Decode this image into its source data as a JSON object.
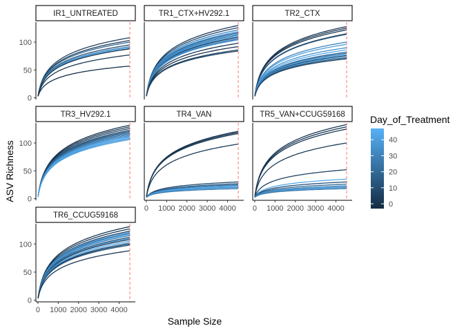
{
  "chart_data": {
    "type": "line",
    "xlabel": "Sample Size",
    "ylabel": "ASV Richness",
    "xlim": [
      -100,
      4800
    ],
    "ylim": [
      -3,
      136
    ],
    "x_ticks": [
      0,
      1000,
      2000,
      3000,
      4000
    ],
    "x_tick_labels": [
      "0",
      "1000",
      "2000",
      "3000",
      "4000"
    ],
    "y_ticks": [
      0,
      50,
      100
    ],
    "y_tick_labels": [
      "0",
      "50",
      "100"
    ],
    "rarefaction_depth": 4530,
    "grid": false,
    "legend": {
      "title": "Day_of_Treatment",
      "position": "right",
      "ticks": [
        0,
        10,
        20,
        30,
        40
      ],
      "tick_labels": [
        "0",
        "10",
        "20",
        "30",
        "40"
      ],
      "range": [
        -3,
        47
      ],
      "color_low": "#132b43",
      "color_high": "#56b1f7"
    },
    "colors": {
      "reference_line": "#f8766d",
      "panel_border": "#000000"
    },
    "panels": [
      {
        "title": "IR1_UNTREATED",
        "curves": [
          {
            "final": 108,
            "day": 5
          },
          {
            "final": 103,
            "day": 2
          },
          {
            "final": 100,
            "day": 20
          },
          {
            "final": 95,
            "day": 10
          },
          {
            "final": 92,
            "day": 32
          },
          {
            "final": 90,
            "day": 40
          },
          {
            "final": 88,
            "day": 0
          },
          {
            "final": 77,
            "day": 1
          },
          {
            "final": 57,
            "day": -2
          }
        ]
      },
      {
        "title": "TR1_CTX+HV292.1",
        "curves": [
          {
            "final": 130,
            "day": 3
          },
          {
            "final": 126,
            "day": 8
          },
          {
            "final": 122,
            "day": 30
          },
          {
            "final": 119,
            "day": 42
          },
          {
            "final": 117,
            "day": 15
          },
          {
            "final": 115,
            "day": 38
          },
          {
            "final": 113,
            "day": 25
          },
          {
            "final": 111,
            "day": 44
          },
          {
            "final": 109,
            "day": 2
          },
          {
            "final": 107,
            "day": 35
          },
          {
            "final": 105,
            "day": 20
          },
          {
            "final": 104,
            "day": 40
          },
          {
            "final": 98,
            "day": 1
          },
          {
            "final": 92,
            "day": 0
          },
          {
            "final": 86,
            "day": 4
          },
          {
            "final": 84,
            "day": 7
          }
        ]
      },
      {
        "title": "TR2_CTX",
        "curves": [
          {
            "final": 128,
            "day": 0
          },
          {
            "final": 125,
            "day": 1
          },
          {
            "final": 122,
            "day": 2
          },
          {
            "final": 115,
            "day": 3
          },
          {
            "final": 114,
            "day": 12
          },
          {
            "final": 100,
            "day": 30
          },
          {
            "final": 96,
            "day": 40
          },
          {
            "final": 90,
            "day": 35
          },
          {
            "final": 86,
            "day": 44
          },
          {
            "final": 82,
            "day": 20
          },
          {
            "final": 80,
            "day": 25
          },
          {
            "final": 78,
            "day": 42
          },
          {
            "final": 76,
            "day": 8
          },
          {
            "final": 74,
            "day": 38
          },
          {
            "final": 72,
            "day": 15
          },
          {
            "final": 70,
            "day": 5
          }
        ]
      },
      {
        "title": "TR3_HV292.1",
        "curves": [
          {
            "final": 132,
            "day": 0
          },
          {
            "final": 129,
            "day": 2
          },
          {
            "final": 126,
            "day": 5
          },
          {
            "final": 123,
            "day": 10
          },
          {
            "final": 121,
            "day": 15
          },
          {
            "final": 119,
            "day": 20
          },
          {
            "final": 117,
            "day": 25
          },
          {
            "final": 115,
            "day": 30
          },
          {
            "final": 113,
            "day": 35
          },
          {
            "final": 112,
            "day": 40
          },
          {
            "final": 110,
            "day": 44
          },
          {
            "final": 108,
            "day": 38
          },
          {
            "final": 106,
            "day": 42
          }
        ]
      },
      {
        "title": "TR4_VAN",
        "curves": [
          {
            "final": 121,
            "day": 0
          },
          {
            "final": 119,
            "day": 1
          },
          {
            "final": 117,
            "day": 2
          },
          {
            "final": 98,
            "day": 3
          },
          {
            "final": 30,
            "day": 8
          },
          {
            "final": 27,
            "day": 15
          },
          {
            "final": 25,
            "day": 22
          },
          {
            "final": 24,
            "day": 30
          },
          {
            "final": 22,
            "day": 44
          },
          {
            "final": 21,
            "day": 36
          },
          {
            "final": 20,
            "day": 40
          },
          {
            "final": 18,
            "day": 26
          }
        ]
      },
      {
        "title": "TR5_VAN+CCUG59168",
        "curves": [
          {
            "final": 133,
            "day": 0
          },
          {
            "final": 129,
            "day": 1
          },
          {
            "final": 125,
            "day": 2
          },
          {
            "final": 100,
            "day": 3
          },
          {
            "final": 52,
            "day": 5
          },
          {
            "final": 35,
            "day": 44
          },
          {
            "final": 30,
            "day": 10
          },
          {
            "final": 26,
            "day": 20
          },
          {
            "final": 23,
            "day": 30
          },
          {
            "final": 21,
            "day": 40
          },
          {
            "final": 20,
            "day": 36
          },
          {
            "final": 18,
            "day": 26
          }
        ]
      },
      {
        "title": "TR6_CCUG59168",
        "curves": [
          {
            "final": 131,
            "day": 0
          },
          {
            "final": 127,
            "day": 3
          },
          {
            "final": 123,
            "day": 8
          },
          {
            "final": 121,
            "day": 40
          },
          {
            "final": 119,
            "day": 20
          },
          {
            "final": 117,
            "day": 44
          },
          {
            "final": 115,
            "day": 30
          },
          {
            "final": 112,
            "day": 12
          },
          {
            "final": 110,
            "day": 35
          },
          {
            "final": 108,
            "day": 2
          },
          {
            "final": 105,
            "day": 42
          },
          {
            "final": 102,
            "day": 25
          },
          {
            "final": 100,
            "day": 5
          },
          {
            "final": 98,
            "day": 15
          },
          {
            "final": 88,
            "day": 1
          }
        ]
      }
    ]
  }
}
